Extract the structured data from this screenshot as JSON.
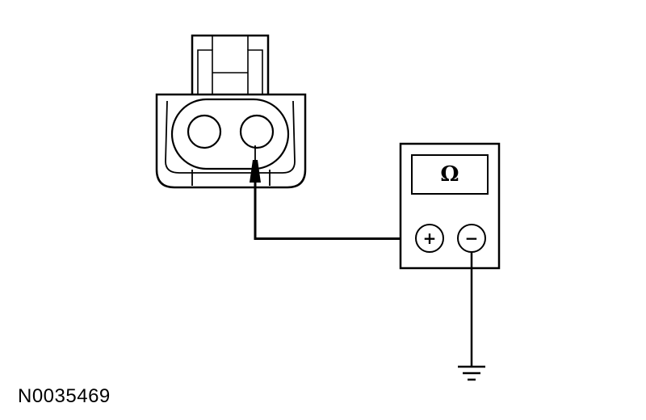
{
  "meter": {
    "display_symbol": "Ω",
    "positive_terminal": "+",
    "negative_terminal": "−"
  },
  "figure_id": "N0035469",
  "colors": {
    "line": "#000000",
    "background": "#ffffff"
  }
}
